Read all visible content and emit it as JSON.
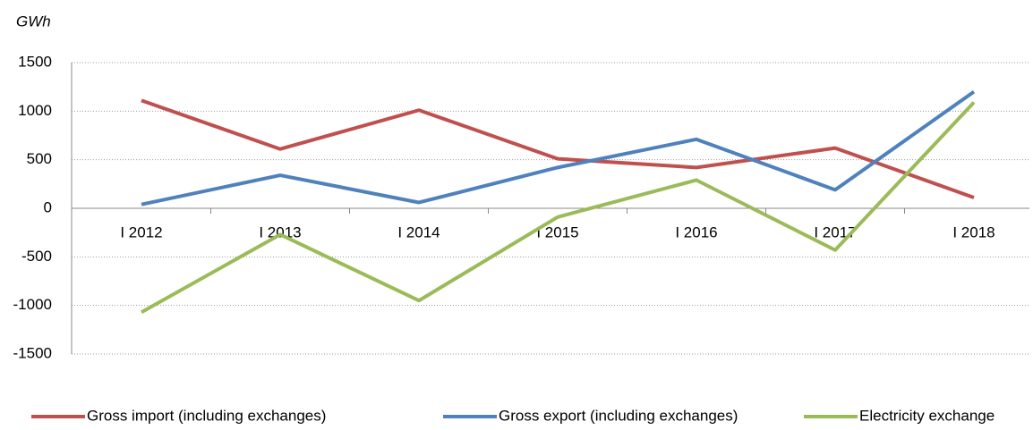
{
  "chart_data": {
    "type": "line",
    "y_axis_label": "GWh",
    "categories": [
      "I 2012",
      "I 2013",
      "I 2014",
      "I 2015",
      "I 2016",
      "I 2017",
      "I 2018"
    ],
    "series": [
      {
        "name": "Gross import (including exchanges)",
        "color": "#c0504d",
        "values": [
          1110,
          610,
          1010,
          510,
          420,
          620,
          110
        ]
      },
      {
        "name": "Gross export (including exchanges)",
        "color": "#4f81bd",
        "values": [
          40,
          340,
          60,
          420,
          710,
          190,
          1200
        ]
      },
      {
        "name": "Electricity exchange",
        "color": "#9bbb59",
        "values": [
          -1070,
          -270,
          -950,
          -90,
          290,
          -430,
          1090
        ]
      }
    ],
    "ylim": [
      -1500,
      1500
    ],
    "yticks": [
      -1500,
      -1000,
      -500,
      0,
      500,
      1000,
      1500
    ],
    "grid": true,
    "legend": "bottom"
  }
}
